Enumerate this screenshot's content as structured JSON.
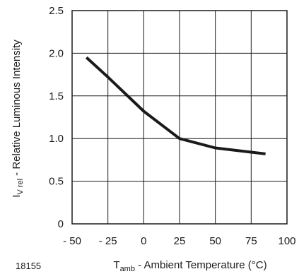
{
  "figure_id": "18155",
  "chart_data": {
    "type": "line",
    "title": "",
    "xlabel": {
      "symbol": "T",
      "subscript": "amb",
      "text": " - Ambient Temperature (°C)"
    },
    "ylabel": {
      "symbol": "I",
      "subscript": "V rel",
      "text": " - Relative Luminous Intensity"
    },
    "xlim": [
      -50,
      100
    ],
    "ylim": [
      0,
      2.5
    ],
    "xticks": [
      -50,
      -25,
      0,
      25,
      50,
      75,
      100
    ],
    "xtick_labels": [
      "- 50",
      "- 25",
      "0",
      "25",
      "50",
      "75",
      "100"
    ],
    "yticks": [
      0,
      0.5,
      1.0,
      1.5,
      2.0,
      2.5
    ],
    "ytick_labels": [
      "0",
      "0.5",
      "1.0",
      "1.5",
      "2.0",
      "2.5"
    ],
    "grid": true,
    "series": [
      {
        "color": "#1a1a1a",
        "x": [
          -40,
          -25,
          0,
          25,
          50,
          85
        ],
        "y": [
          1.95,
          1.72,
          1.32,
          1.0,
          0.89,
          0.82
        ]
      }
    ]
  }
}
